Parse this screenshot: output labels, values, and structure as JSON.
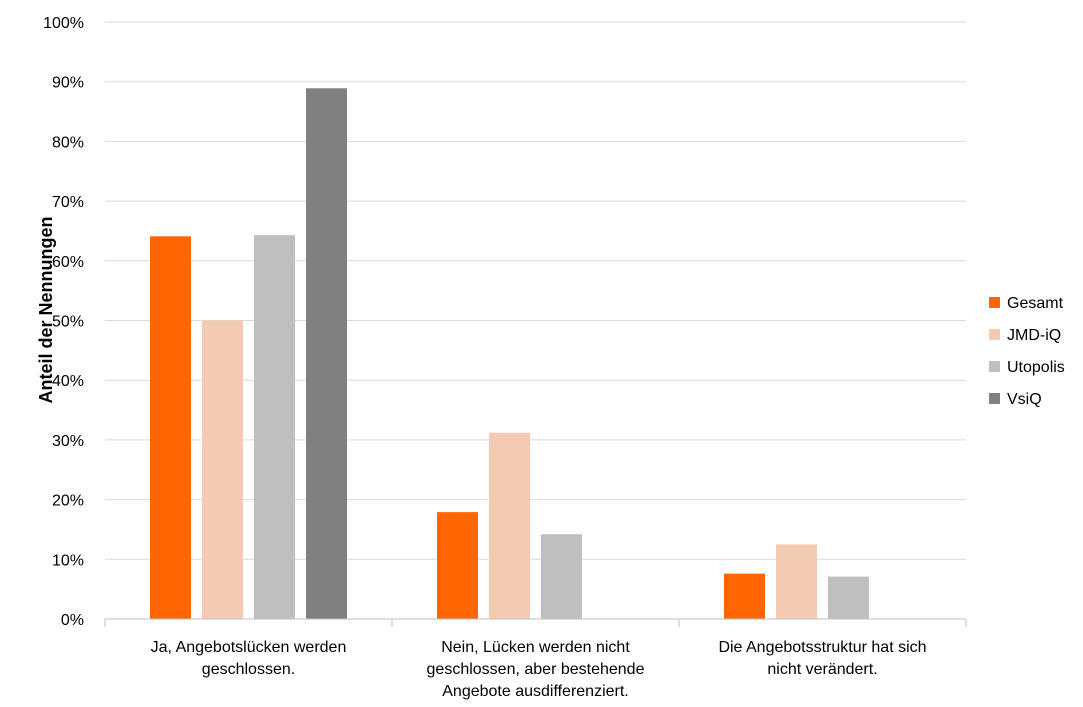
{
  "chart_data": {
    "type": "bar",
    "title": "",
    "xlabel": "",
    "ylabel": "Anteil der Nennungen",
    "ylim": [
      0,
      100
    ],
    "y_unit": "%",
    "ticks": [
      "0%",
      "10%",
      "20%",
      "30%",
      "40%",
      "50%",
      "60%",
      "70%",
      "80%",
      "90%",
      "100%"
    ],
    "grid": true,
    "legend_position": "right",
    "categories": [
      [
        "Ja, Angebotslücken werden",
        "geschlossen."
      ],
      [
        "Nein, Lücken werden nicht",
        "geschlossen, aber bestehende",
        "Angebote ausdifferenziert."
      ],
      [
        "Die Angebotsstruktur hat sich",
        "nicht verändert."
      ]
    ],
    "series": [
      {
        "name": "Gesamt",
        "color": "#ff6600",
        "values": [
          64.1,
          17.9,
          7.6
        ]
      },
      {
        "name": "JMD-iQ",
        "color": "#f4cbb2",
        "values": [
          50,
          31.2,
          12.5
        ]
      },
      {
        "name": "Utopolis",
        "color": "#bfbfbf",
        "values": [
          64.3,
          14.2,
          7.1
        ]
      },
      {
        "name": "VsiQ",
        "color": "#808080",
        "values": [
          88.9,
          null,
          null
        ]
      }
    ]
  }
}
